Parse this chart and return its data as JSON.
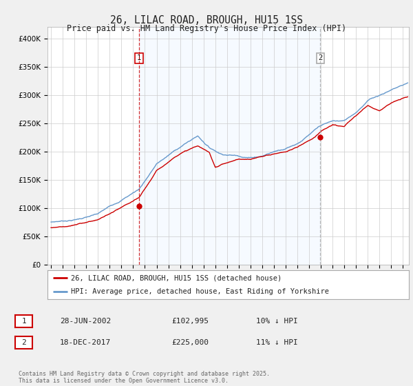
{
  "title": "26, LILAC ROAD, BROUGH, HU15 1SS",
  "subtitle": "Price paid vs. HM Land Registry's House Price Index (HPI)",
  "ylim": [
    0,
    420000
  ],
  "yticks": [
    0,
    50000,
    100000,
    150000,
    200000,
    250000,
    300000,
    350000,
    400000
  ],
  "xlim_start": 1994.7,
  "xlim_end": 2025.5,
  "sale1_x": 2002.49,
  "sale1_y": 102995,
  "sale2_x": 2017.96,
  "sale2_y": 225000,
  "red_line_color": "#cc0000",
  "blue_line_color": "#6699cc",
  "vline1_color": "#cc0000",
  "vline2_color": "#aaaaaa",
  "shade_color": "#ddeeff",
  "legend_red_label": "26, LILAC ROAD, BROUGH, HU15 1SS (detached house)",
  "legend_blue_label": "HPI: Average price, detached house, East Riding of Yorkshire",
  "table_row1": [
    "1",
    "28-JUN-2002",
    "£102,995",
    "10% ↓ HPI"
  ],
  "table_row2": [
    "2",
    "18-DEC-2017",
    "£225,000",
    "11% ↓ HPI"
  ],
  "footer": "Contains HM Land Registry data © Crown copyright and database right 2025.\nThis data is licensed under the Open Government Licence v3.0.",
  "bg_color": "#f0f0f0",
  "plot_bg_color": "#ffffff"
}
